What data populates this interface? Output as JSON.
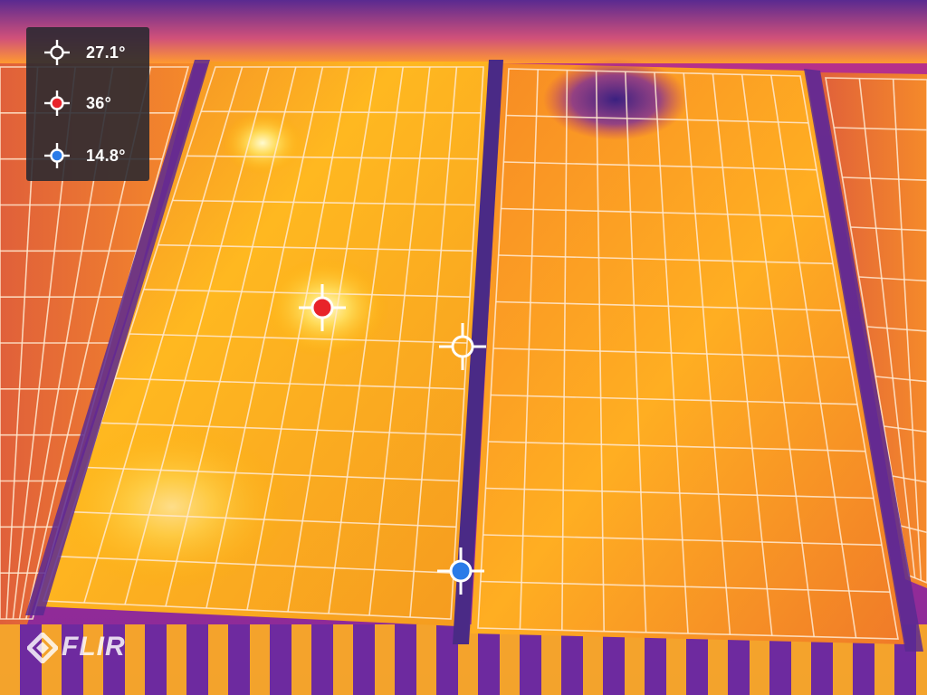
{
  "measurements": [
    {
      "label": "27.1°",
      "kind": "center",
      "color": "#ffffff"
    },
    {
      "label": "36°",
      "kind": "max",
      "color": "#e8232a"
    },
    {
      "label": "14.8°",
      "kind": "min",
      "color": "#2a7be8"
    }
  ],
  "brand": {
    "name": "FLIR"
  },
  "palette": {
    "hot": "#fff3a0",
    "warm": "#ffb300",
    "mid": "#f26b1d",
    "cool": "#a8208f",
    "cold": "#3a1470"
  },
  "icons": [
    "crosshair-icon",
    "flir-logo-icon"
  ]
}
